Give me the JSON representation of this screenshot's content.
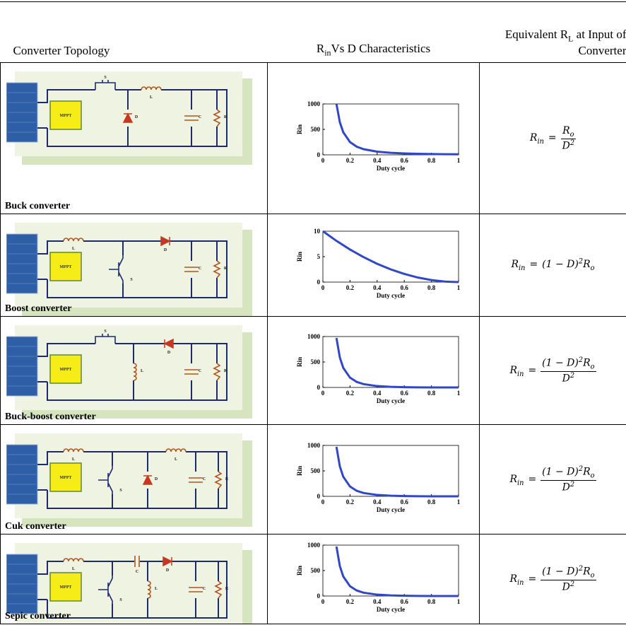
{
  "table": {
    "header": [
      [
        {
          "text": "Converter Topology",
          "style": "main"
        }
      ],
      [
        {
          "text": "R",
          "style": "main"
        },
        {
          "text": "in",
          "style": "sub"
        },
        {
          "text": "Vs D Characteristics",
          "style": "main"
        }
      ],
      [
        {
          "text": "Equivalent R",
          "style": "main"
        },
        {
          "text": "L",
          "style": "sub"
        },
        {
          "text": " at Input of Converter",
          "style": "main"
        }
      ]
    ],
    "rows": [
      {
        "label": "Buck converter",
        "circuit": {
          "controller": "MPPT",
          "components": [
            "S",
            "L",
            "D",
            "C",
            "R"
          ]
        },
        "chart": {
          "type": "line",
          "xlabel": "Duty cycle",
          "ylabel": "Rin",
          "color": "#3047c6",
          "x": [
            0.1,
            0.125,
            0.15,
            0.2,
            0.25,
            0.3,
            0.4,
            0.5,
            0.6,
            0.7,
            0.8,
            0.9,
            1
          ],
          "values": [
            1000,
            640,
            444,
            250,
            160,
            111,
            62.5,
            40,
            27.8,
            20.4,
            15.6,
            12.3,
            10
          ],
          "xlim": [
            0,
            1
          ],
          "ylim": [
            0,
            1000
          ],
          "xticks": [
            0,
            0.2,
            0.4,
            0.6,
            0.8,
            1
          ],
          "yticks": [
            0,
            500,
            1000
          ]
        },
        "formula": {
          "lhs": [
            {
              "text": "R",
              "style": "main"
            },
            {
              "text": "in",
              "style": "sub"
            }
          ],
          "relation": "=",
          "numerator": [
            {
              "text": "R",
              "style": "main"
            },
            {
              "text": "o",
              "style": "sub"
            }
          ],
          "denominator": [
            {
              "text": "D",
              "style": "main"
            },
            {
              "text": "2",
              "style": "sup"
            }
          ]
        }
      },
      {
        "label": "Boost converter",
        "circuit": {
          "controller": "MPPT",
          "components": [
            "L",
            "S",
            "D",
            "C",
            "R"
          ]
        },
        "chart": {
          "type": "line",
          "xlabel": "Duty cycle",
          "ylabel": "Rin",
          "color": "#3047c6",
          "x": [
            0,
            0.1,
            0.2,
            0.3,
            0.4,
            0.5,
            0.6,
            0.7,
            0.8,
            0.9,
            1
          ],
          "values": [
            10,
            8.1,
            6.4,
            4.9,
            3.6,
            2.5,
            1.6,
            0.9,
            0.4,
            0.1,
            0
          ],
          "xlim": [
            0,
            1
          ],
          "ylim": [
            0,
            10
          ],
          "xticks": [
            0,
            0.2,
            0.4,
            0.6,
            0.8,
            1
          ],
          "yticks": [
            0,
            5,
            10
          ]
        },
        "formula": {
          "lhs": [
            {
              "text": "R",
              "style": "main"
            },
            {
              "text": "in",
              "style": "sub"
            }
          ],
          "relation": "=",
          "rhs": [
            {
              "text": "(1 − D)",
              "style": "main"
            },
            {
              "text": "2",
              "style": "sup"
            },
            {
              "text": "R",
              "style": "main"
            },
            {
              "text": "o",
              "style": "sub"
            }
          ]
        }
      },
      {
        "label": "Buck-boost converter",
        "circuit": {
          "controller": "MPPT",
          "components": [
            "S",
            "L",
            "D",
            "C",
            "R"
          ]
        },
        "chart": {
          "type": "line",
          "xlabel": "Duty cycle",
          "ylabel": "Rin",
          "color": "#3047c6",
          "x": [
            0.1,
            0.125,
            0.15,
            0.2,
            0.25,
            0.3,
            0.4,
            0.5,
            0.6,
            0.7,
            0.8,
            0.9,
            1
          ],
          "values": [
            972,
            588,
            385,
            192,
            108,
            65,
            27,
            12,
            5.3,
            2.2,
            0.75,
            0.15,
            0
          ],
          "xlim": [
            0,
            1
          ],
          "ylim": [
            0,
            1000
          ],
          "xticks": [
            0,
            0.2,
            0.4,
            0.6,
            0.8,
            1
          ],
          "yticks": [
            0,
            500,
            1000
          ]
        },
        "formula": {
          "lhs": [
            {
              "text": "R",
              "style": "main"
            },
            {
              "text": "in",
              "style": "sub"
            }
          ],
          "relation": "=",
          "numerator": [
            {
              "text": "(1 − D)",
              "style": "main"
            },
            {
              "text": "2",
              "style": "sup"
            },
            {
              "text": "R",
              "style": "main"
            },
            {
              "text": "o",
              "style": "sub"
            }
          ],
          "denominator": [
            {
              "text": "D",
              "style": "main"
            },
            {
              "text": "2",
              "style": "sup"
            }
          ]
        }
      },
      {
        "label": "Cuk converter",
        "circuit": {
          "controller": "MPPT",
          "components": [
            "L",
            "S",
            "D",
            "L",
            "C",
            "R"
          ]
        },
        "chart": {
          "type": "line",
          "xlabel": "Duty cycle",
          "ylabel": "Rin",
          "color": "#3047c6",
          "x": [
            0.1,
            0.125,
            0.15,
            0.2,
            0.25,
            0.3,
            0.4,
            0.5,
            0.6,
            0.7,
            0.8,
            0.9,
            1
          ],
          "values": [
            972,
            588,
            385,
            192,
            108,
            65,
            27,
            12,
            5.3,
            2.2,
            0.75,
            0.15,
            0
          ],
          "xlim": [
            0,
            1
          ],
          "ylim": [
            0,
            1000
          ],
          "xticks": [
            0,
            0.2,
            0.4,
            0.6,
            0.8,
            1
          ],
          "yticks": [
            0,
            500,
            1000
          ]
        },
        "formula": {
          "lhs": [
            {
              "text": "R",
              "style": "main"
            },
            {
              "text": "in",
              "style": "sub"
            }
          ],
          "relation": "=",
          "numerator": [
            {
              "text": "(1 − D)",
              "style": "main"
            },
            {
              "text": "2",
              "style": "sup"
            },
            {
              "text": "R",
              "style": "main"
            },
            {
              "text": "o",
              "style": "sub"
            }
          ],
          "denominator": [
            {
              "text": "D",
              "style": "main"
            },
            {
              "text": "2",
              "style": "sup"
            }
          ]
        }
      },
      {
        "label": "Sepic converter",
        "circuit": {
          "controller": "MPPT",
          "components": [
            "L",
            "S",
            "C",
            "D",
            "L",
            "C",
            "R"
          ]
        },
        "chart": {
          "type": "line",
          "xlabel": "Duty cycle",
          "ylabel": "Rin",
          "color": "#3047c6",
          "x": [
            0.1,
            0.125,
            0.15,
            0.2,
            0.25,
            0.3,
            0.4,
            0.5,
            0.6,
            0.7,
            0.8,
            0.9,
            1
          ],
          "values": [
            972,
            588,
            385,
            192,
            108,
            65,
            27,
            12,
            5.3,
            2.2,
            0.75,
            0.15,
            0
          ],
          "xlim": [
            0,
            1
          ],
          "ylim": [
            0,
            1000
          ],
          "xticks": [
            0,
            0.2,
            0.4,
            0.6,
            0.8,
            1
          ],
          "yticks": [
            0,
            500,
            1000
          ]
        },
        "formula": {
          "lhs": [
            {
              "text": "R",
              "style": "main"
            },
            {
              "text": "in",
              "style": "sub"
            }
          ],
          "relation": "=",
          "numerator": [
            {
              "text": "(1 − D)",
              "style": "main"
            },
            {
              "text": "2",
              "style": "sup"
            },
            {
              "text": "R",
              "style": "main"
            },
            {
              "text": "o",
              "style": "sub"
            }
          ],
          "denominator": [
            {
              "text": "D",
              "style": "main"
            },
            {
              "text": "2",
              "style": "sup"
            }
          ]
        }
      }
    ]
  }
}
